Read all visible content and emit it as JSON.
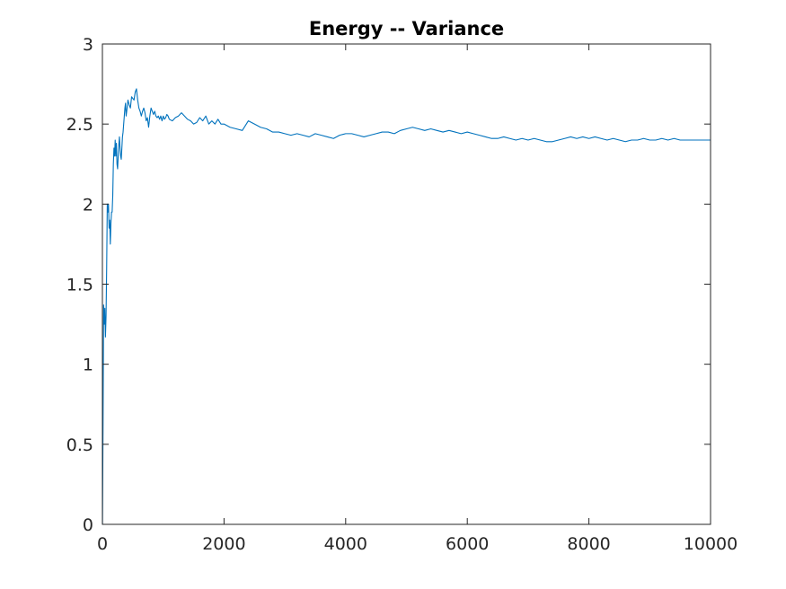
{
  "chart_data": {
    "type": "line",
    "title": "Energy -- Variance",
    "xlabel": "",
    "ylabel": "",
    "xlim": [
      0,
      10000
    ],
    "ylim": [
      0,
      3
    ],
    "xticks": [
      0,
      2000,
      4000,
      6000,
      8000,
      10000
    ],
    "yticks": [
      0,
      0.5,
      1,
      1.5,
      2,
      2.5,
      3
    ],
    "grid": false,
    "legend": "none",
    "series": [
      {
        "color": "#0072BD",
        "x": [
          1,
          10,
          20,
          30,
          40,
          50,
          60,
          70,
          80,
          90,
          100,
          110,
          120,
          130,
          140,
          150,
          160,
          170,
          180,
          190,
          200,
          210,
          220,
          230,
          240,
          250,
          260,
          270,
          280,
          290,
          300,
          310,
          320,
          330,
          340,
          350,
          360,
          370,
          380,
          390,
          400,
          420,
          440,
          460,
          480,
          500,
          520,
          540,
          560,
          580,
          600,
          620,
          640,
          660,
          680,
          700,
          720,
          740,
          760,
          780,
          800,
          820,
          840,
          860,
          880,
          900,
          920,
          940,
          960,
          980,
          1000,
          1020,
          1040,
          1060,
          1080,
          1100,
          1150,
          1200,
          1250,
          1300,
          1350,
          1400,
          1450,
          1500,
          1550,
          1600,
          1650,
          1700,
          1750,
          1800,
          1850,
          1900,
          1950,
          2000,
          2100,
          2200,
          2300,
          2400,
          2450,
          2500,
          2600,
          2700,
          2800,
          2900,
          3000,
          3100,
          3200,
          3300,
          3400,
          3500,
          3600,
          3700,
          3800,
          3900,
          4000,
          4100,
          4200,
          4300,
          4400,
          4500,
          4600,
          4700,
          4800,
          4900,
          5000,
          5100,
          5200,
          5300,
          5400,
          5500,
          5600,
          5700,
          5800,
          5900,
          6000,
          6100,
          6200,
          6300,
          6400,
          6500,
          6600,
          6700,
          6800,
          6900,
          7000,
          7100,
          7200,
          7300,
          7400,
          7500,
          7600,
          7700,
          7800,
          7900,
          8000,
          8100,
          8200,
          8300,
          8400,
          8500,
          8600,
          8700,
          8800,
          8900,
          9000,
          9100,
          9200,
          9300,
          9400,
          9500,
          9600,
          9700,
          9800,
          9900,
          10000
        ],
        "y": [
          0.0,
          0.6,
          1.37,
          1.25,
          1.35,
          1.17,
          1.3,
          1.6,
          2.0,
          1.95,
          2.0,
          1.85,
          1.9,
          1.75,
          1.88,
          1.95,
          1.95,
          2.05,
          2.25,
          2.35,
          2.3,
          2.4,
          2.3,
          2.38,
          2.25,
          2.22,
          2.3,
          2.37,
          2.42,
          2.35,
          2.3,
          2.28,
          2.35,
          2.42,
          2.45,
          2.5,
          2.55,
          2.6,
          2.63,
          2.55,
          2.58,
          2.65,
          2.62,
          2.6,
          2.67,
          2.66,
          2.65,
          2.7,
          2.72,
          2.65,
          2.6,
          2.58,
          2.55,
          2.58,
          2.6,
          2.57,
          2.52,
          2.54,
          2.48,
          2.55,
          2.6,
          2.58,
          2.56,
          2.58,
          2.55,
          2.54,
          2.55,
          2.53,
          2.55,
          2.52,
          2.55,
          2.53,
          2.54,
          2.56,
          2.55,
          2.53,
          2.52,
          2.54,
          2.55,
          2.57,
          2.55,
          2.53,
          2.52,
          2.5,
          2.51,
          2.54,
          2.52,
          2.55,
          2.5,
          2.52,
          2.5,
          2.53,
          2.5,
          2.5,
          2.48,
          2.47,
          2.46,
          2.52,
          2.51,
          2.5,
          2.48,
          2.47,
          2.45,
          2.45,
          2.44,
          2.43,
          2.44,
          2.43,
          2.42,
          2.44,
          2.43,
          2.42,
          2.41,
          2.43,
          2.44,
          2.44,
          2.43,
          2.42,
          2.43,
          2.44,
          2.45,
          2.45,
          2.44,
          2.46,
          2.47,
          2.48,
          2.47,
          2.46,
          2.47,
          2.46,
          2.45,
          2.46,
          2.45,
          2.44,
          2.45,
          2.44,
          2.43,
          2.42,
          2.41,
          2.41,
          2.42,
          2.41,
          2.4,
          2.41,
          2.4,
          2.41,
          2.4,
          2.39,
          2.39,
          2.4,
          2.41,
          2.42,
          2.41,
          2.42,
          2.41,
          2.42,
          2.41,
          2.4,
          2.41,
          2.4,
          2.39,
          2.4,
          2.4,
          2.41,
          2.4,
          2.4,
          2.41,
          2.4,
          2.41,
          2.4,
          2.4,
          2.4,
          2.4,
          2.4,
          2.4
        ]
      }
    ]
  }
}
